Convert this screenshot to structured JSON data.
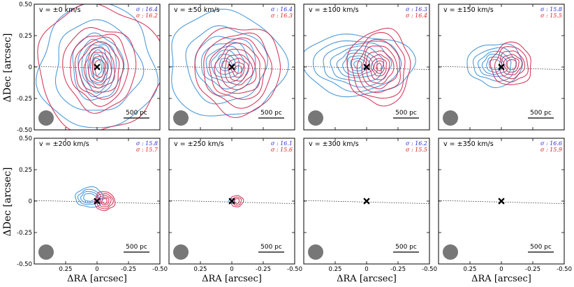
{
  "chart_data": {
    "type": "contour",
    "xlabel": "ΔRA [arcsec]",
    "ylabel": "ΔDec [arcsec]",
    "xlim": [
      0.5,
      -0.5
    ],
    "ylim": [
      -0.5,
      0.5
    ],
    "xticks": [
      "0.25",
      "0",
      "-0.25",
      "-0.50"
    ],
    "yticks": [
      "0.50",
      "0.25",
      "0",
      "-0.25",
      "-0.50"
    ],
    "xtick_values": [
      0.25,
      0,
      -0.25,
      -0.5
    ],
    "ytick_values": [
      0.5,
      0.25,
      0,
      -0.25,
      -0.5
    ],
    "scalebar_label": "500 pc",
    "colors": {
      "blue": "#3b8fd6",
      "red": "#d2284e",
      "sigma_blue": "#2b2bd6",
      "sigma_red": "#e01b1b",
      "beam": "#777777",
      "marker": "#000000"
    },
    "panels": [
      {
        "velocity_label": "v = ±0 km/s",
        "sigma_blue": "σ : 16.4",
        "sigma_red": "σ : 16.2",
        "blue": {
          "cx": 0.0,
          "cy": 0.0,
          "rx": [
            0.46,
            0.34,
            0.2,
            0.15,
            0.12,
            0.09,
            0.07,
            0.05,
            0.035
          ],
          "ry": [
            0.5,
            0.36,
            0.26,
            0.22,
            0.19,
            0.16,
            0.13,
            0.1,
            0.07
          ]
        },
        "red": {
          "cx": -0.02,
          "cy": -0.01,
          "rx": [
            0.5,
            0.29,
            0.23,
            0.19,
            0.16,
            0.12,
            0.09,
            0.06,
            0.04
          ],
          "ry": [
            0.5,
            0.33,
            0.28,
            0.24,
            0.2,
            0.16,
            0.13,
            0.1,
            0.07
          ]
        }
      },
      {
        "velocity_label": "v = ±50 km/s",
        "sigma_blue": "σ : 16.4",
        "sigma_red": "σ : 16.3",
        "blue": {
          "cx": 0.05,
          "cy": 0.02,
          "rx": [
            0.46,
            0.32,
            0.24,
            0.19,
            0.15,
            0.11,
            0.08,
            0.05,
            0.03
          ],
          "ry": [
            0.42,
            0.3,
            0.23,
            0.18,
            0.14,
            0.11,
            0.08,
            0.05,
            0.03
          ]
        },
        "red": {
          "cx": -0.05,
          "cy": -0.02,
          "rx": [
            0.34,
            0.27,
            0.22,
            0.18,
            0.14,
            0.11,
            0.08,
            0.05,
            0.03
          ],
          "ry": [
            0.35,
            0.29,
            0.24,
            0.2,
            0.16,
            0.12,
            0.09,
            0.06,
            0.03
          ]
        }
      },
      {
        "velocity_label": "v = ±100 km/s",
        "sigma_blue": "σ : 16.3",
        "sigma_red": "σ : 16.4",
        "blue": {
          "cx": 0.07,
          "cy": 0.02,
          "rx": [
            0.45,
            0.35,
            0.27,
            0.21,
            0.16,
            0.12,
            0.09,
            0.06,
            0.03
          ],
          "ry": [
            0.24,
            0.2,
            0.17,
            0.14,
            0.11,
            0.09,
            0.07,
            0.05,
            0.03
          ]
        },
        "red": {
          "cx": -0.1,
          "cy": 0.0,
          "rx": [
            0.25,
            0.21,
            0.17,
            0.14,
            0.11,
            0.08,
            0.06,
            0.04,
            0.02
          ],
          "ry": [
            0.3,
            0.26,
            0.21,
            0.17,
            0.13,
            0.1,
            0.07,
            0.05,
            0.03
          ]
        }
      },
      {
        "velocity_label": "v = ±150 km/s",
        "sigma_blue": "σ : 15.8",
        "sigma_red": "σ : 15.5",
        "blue": {
          "cx": 0.05,
          "cy": 0.02,
          "rx": [
            0.22,
            0.17,
            0.13,
            0.1,
            0.07,
            0.05
          ],
          "ry": [
            0.17,
            0.13,
            0.1,
            0.08,
            0.06,
            0.04
          ]
        },
        "red": {
          "cx": -0.08,
          "cy": 0.02,
          "rx": [
            0.16,
            0.13,
            0.1,
            0.08,
            0.06,
            0.04
          ],
          "ry": [
            0.17,
            0.14,
            0.11,
            0.08,
            0.06,
            0.04
          ]
        }
      },
      {
        "velocity_label": "v = ±200 km/s",
        "sigma_blue": "σ : 15.8",
        "sigma_red": "σ : 15.7",
        "blue": {
          "cx": 0.06,
          "cy": 0.03,
          "rx": [
            0.11,
            0.09,
            0.07,
            0.05
          ],
          "ry": [
            0.08,
            0.06,
            0.045,
            0.03
          ]
        },
        "red": {
          "cx": -0.06,
          "cy": 0.0,
          "rx": [
            0.08,
            0.065,
            0.05,
            0.035,
            0.02
          ],
          "ry": [
            0.075,
            0.06,
            0.045,
            0.03,
            0.02
          ]
        }
      },
      {
        "velocity_label": "v = ±250 km/s",
        "sigma_blue": "σ : 16.1",
        "sigma_red": "σ : 15.6",
        "blue": {
          "cx": 0.0,
          "cy": 0.0,
          "rx": [
            0.025
          ],
          "ry": [
            0.02
          ]
        },
        "red": {
          "cx": -0.04,
          "cy": 0.0,
          "rx": [
            0.05,
            0.035,
            0.02
          ],
          "ry": [
            0.045,
            0.032,
            0.02
          ]
        }
      },
      {
        "velocity_label": "v = ±300 km/s",
        "sigma_blue": "σ : 16.2",
        "sigma_red": "σ : 15.5",
        "blue": {
          "cx": 0,
          "cy": 0,
          "rx": [],
          "ry": []
        },
        "red": {
          "cx": 0,
          "cy": 0,
          "rx": [],
          "ry": []
        }
      },
      {
        "velocity_label": "v = ±350 km/s",
        "sigma_blue": "σ : 16.6",
        "sigma_red": "σ : 15.9",
        "blue": {
          "cx": 0,
          "cy": 0,
          "rx": [],
          "ry": []
        },
        "red": {
          "cx": 0,
          "cy": 0,
          "rx": [],
          "ry": []
        }
      }
    ]
  }
}
